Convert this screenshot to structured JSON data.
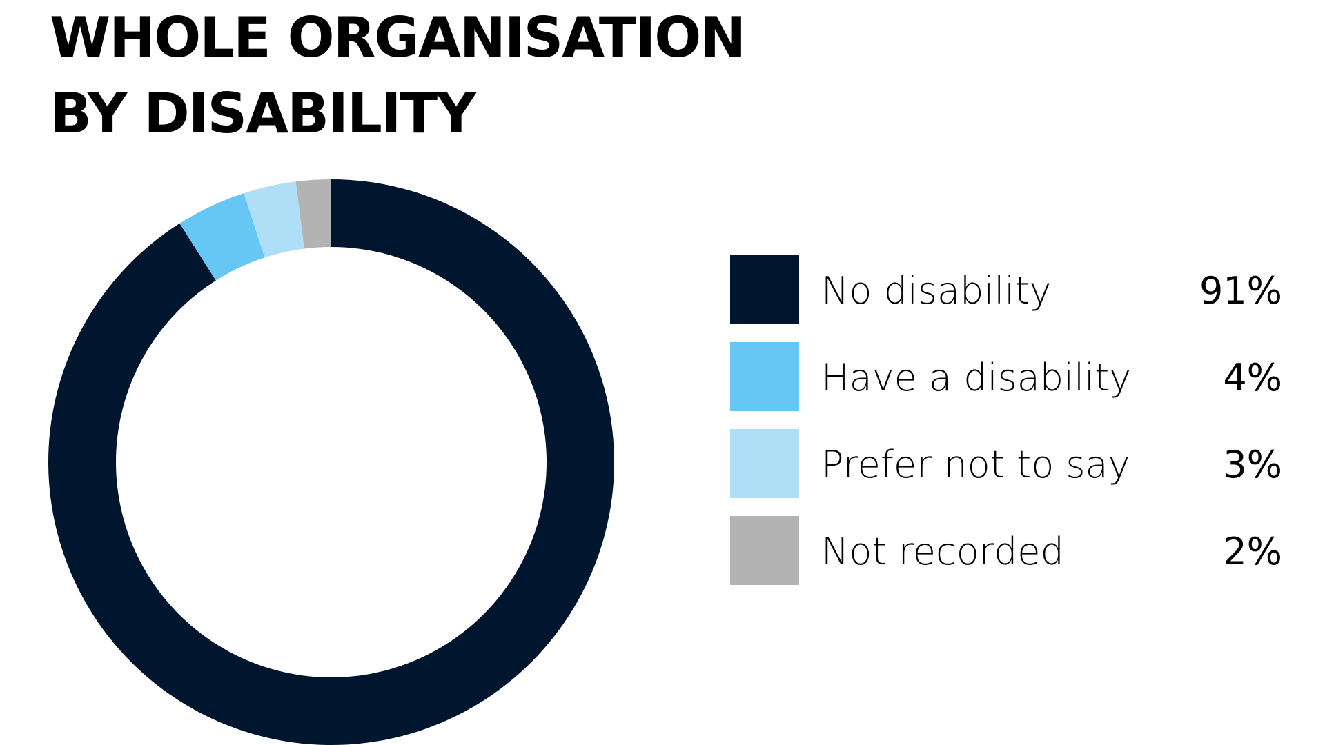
{
  "title_lines": [
    "WHOLE ORGANISATION",
    "BY DISABILITY"
  ],
  "chart_data": {
    "type": "pie",
    "donut": true,
    "start": "top",
    "direction": "clockwise",
    "title": "WHOLE ORGANISATION BY DISABILITY",
    "legend_position": "right",
    "slices": [
      {
        "label": "No disability",
        "value": 91,
        "display": "91%",
        "color": "#00162F"
      },
      {
        "label": "Have a disability",
        "value": 4,
        "display": "4%",
        "color": "#66C6F4"
      },
      {
        "label": "Prefer not to say",
        "value": 3,
        "display": "3%",
        "color": "#AEDFF7"
      },
      {
        "label": "Not recorded",
        "value": 2,
        "display": "2%",
        "color": "#B3B3B3"
      }
    ]
  }
}
